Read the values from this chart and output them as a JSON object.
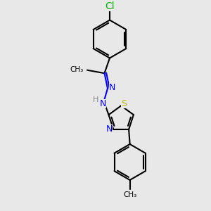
{
  "background_color": "#e8e8e8",
  "atom_colors": {
    "C": "#000000",
    "N": "#0000ff",
    "S": "#b8b800",
    "Cl": "#00bb00",
    "H": "#888888"
  },
  "bond_color": "#000000",
  "bond_width": 1.5,
  "font_size_atom": 9
}
